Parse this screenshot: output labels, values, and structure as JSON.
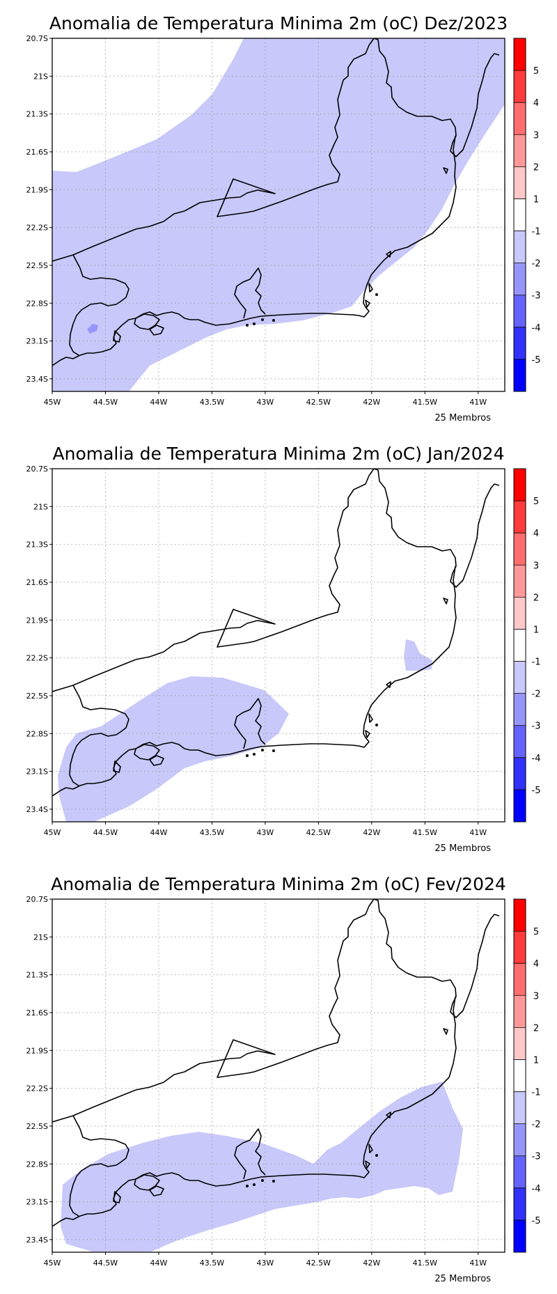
{
  "panels": [
    {
      "title": "Anomalia de Temperatura Minima 2m (oC) Dez/2023",
      "members_label": "25 Membros",
      "anomaly_region": "most of the map (north-west, interior and coast)"
    },
    {
      "title": "Anomalia de Temperatura Minima 2m (oC) Jan/2024",
      "members_label": "25 Membros",
      "anomaly_region": "south-west coast and small patch near 41.5W 22.2S"
    },
    {
      "title": "Anomalia de Temperatura Minima 2m (oC) Fev/2024",
      "members_label": "25 Membros",
      "anomaly_region": "south coastal band up to 41.2W 22S"
    }
  ],
  "map": {
    "lon_range": [
      -45.0,
      -40.75
    ],
    "lat_range": [
      -23.5,
      -20.7
    ],
    "lon_ticks": [
      "45W",
      "44.5W",
      "44W",
      "43.5W",
      "43W",
      "42.5W",
      "42W",
      "41.5W",
      "41W"
    ],
    "lat_ticks": [
      "20.7S",
      "21S",
      "21.3S",
      "21.6S",
      "21.9S",
      "22.2S",
      "22.5S",
      "22.8S",
      "23.1S",
      "23.4S"
    ]
  },
  "colorbar": {
    "labels": [
      "5",
      "4",
      "3",
      "2",
      "1",
      "-1",
      "-2",
      "-3",
      "-4",
      "-5"
    ],
    "colors": [
      "#ff0000",
      "#ff3b3b",
      "#ff6e6e",
      "#ff9999",
      "#ffc8c8",
      "#ffffff",
      "#c8c8fa",
      "#9696fa",
      "#6464fa",
      "#3232fa",
      "#0000ff"
    ],
    "shading_color": "#c8c8fa",
    "strong_shading_color": "#9696fa"
  }
}
